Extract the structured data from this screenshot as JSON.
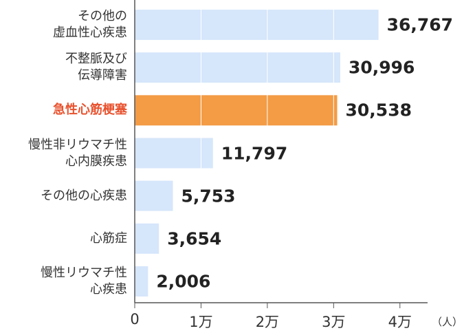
{
  "chart_data": {
    "type": "bar",
    "orientation": "horizontal",
    "categories": [
      "その他の\n虚血性心疾患",
      "不整脈及び\n伝導障害",
      "急性心筋梗塞",
      "慢性非リウマチ性\n心内膜疾患",
      "その他の心疾患",
      "心筋症",
      "慢性リウマチ性\n心疾患"
    ],
    "values": [
      36767,
      30996,
      30538,
      11797,
      5753,
      3654,
      2006
    ],
    "value_labels": [
      "36,767",
      "30,996",
      "30,538",
      "11,797",
      "5,753",
      "3,654",
      "2,006"
    ],
    "colors": [
      "#d6e6fb",
      "#d6e6fb",
      "#f39b45",
      "#d6e6fb",
      "#d6e6fb",
      "#d6e6fb",
      "#d6e6fb"
    ],
    "label_colors": [
      "#333333",
      "#333333",
      "#e8522e",
      "#333333",
      "#333333",
      "#333333",
      "#333333"
    ],
    "xlim": [
      0,
      45000
    ],
    "xticks": [
      0,
      {
        "value": 10000,
        "label": "1万"
      },
      {
        "value": 20000,
        "label": "2万"
      },
      {
        "value": 30000,
        "label": "3万"
      },
      {
        "value": 40000,
        "label": "4万"
      }
    ],
    "x_unit": "（人）",
    "grid": true
  }
}
